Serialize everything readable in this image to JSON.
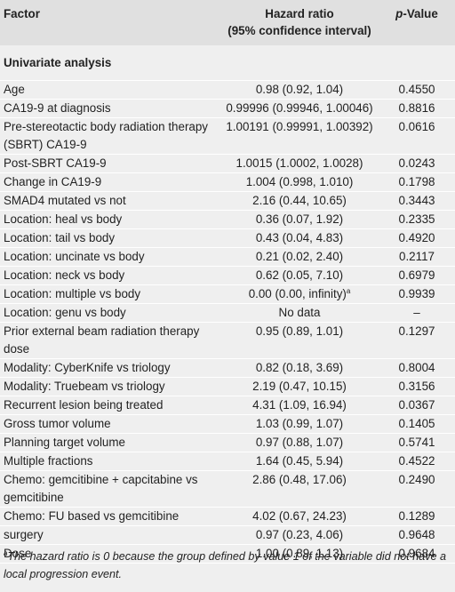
{
  "table": {
    "header": {
      "factor": "Factor",
      "hazard_ratio": [
        "Hazard ratio",
        "(95% confidence interval)"
      ],
      "p_value": {
        "italic": "p",
        "rest": "-Value"
      }
    },
    "section": "Univariate analysis",
    "rows": [
      {
        "factor": "Age",
        "hazard_ratio": "0.98 (0.92, 1.04)",
        "p_value": "0.4550"
      },
      {
        "factor": "CA19-9 at diagnosis",
        "hazard_ratio": "0.99996 (0.99946, 1.00046)",
        "p_value": "0.8816"
      },
      {
        "factor": "Pre-stereotactic body radiation therapy (SBRT) CA19-9",
        "hazard_ratio": "1.00191 (0.99991, 1.00392)",
        "p_value": "0.0616"
      },
      {
        "factor": "Post-SBRT CA19-9",
        "hazard_ratio": "1.0015 (1.0002, 1.0028)",
        "p_value": "0.0243"
      },
      {
        "factor": "Change in CA19-9",
        "hazard_ratio": "1.004 (0.998, 1.010)",
        "p_value": "0.1798"
      },
      {
        "factor": "SMAD4 mutated vs not",
        "hazard_ratio": "2.16 (0.44, 10.65)",
        "p_value": "0.3443"
      },
      {
        "factor": "Location: heal vs body",
        "hazard_ratio": "0.36 (0.07, 1.92)",
        "p_value": "0.2335"
      },
      {
        "factor": "Location: tail vs body",
        "hazard_ratio": "0.43 (0.04, 4.83)",
        "p_value": "0.4920"
      },
      {
        "factor": "Location: uncinate vs body",
        "hazard_ratio": "0.21 (0.02, 2.40)",
        "p_value": "0.2117"
      },
      {
        "factor": "Location: neck vs body",
        "hazard_ratio": "0.62 (0.05, 7.10)",
        "p_value": "0.6979"
      },
      {
        "factor": "Location: multiple vs body",
        "hazard_ratio": "0.00 (0.00, infinity)",
        "note": "a",
        "p_value": "0.9939"
      },
      {
        "factor": "Location: genu vs body",
        "hazard_ratio": "No data",
        "p_value": "–"
      },
      {
        "factor": "Prior external beam radiation therapy dose",
        "hazard_ratio": "0.95 (0.89, 1.01)",
        "p_value": "0.1297"
      },
      {
        "factor": "Modality: CyberKnife vs triology",
        "hazard_ratio": "0.82 (0.18, 3.69)",
        "p_value": "0.8004"
      },
      {
        "factor": "Modality: Truebeam vs triology",
        "hazard_ratio": "2.19 (0.47, 10.15)",
        "p_value": "0.3156"
      },
      {
        "factor": "Recurrent lesion being treated",
        "hazard_ratio": "4.31 (1.09, 16.94)",
        "p_value": "0.0367"
      },
      {
        "factor": "Gross tumor volume",
        "hazard_ratio": "1.03 (0.99, 1.07)",
        "p_value": "0.1405"
      },
      {
        "factor": "Planning target volume",
        "hazard_ratio": "0.97 (0.88, 1.07)",
        "p_value": "0.5741"
      },
      {
        "factor": "Multiple fractions",
        "hazard_ratio": "1.64 (0.45, 5.94)",
        "p_value": "0.4522"
      },
      {
        "factor": "Chemo: gemcitibine + capcitabine vs gemcitibine",
        "hazard_ratio": "2.86 (0.48, 17.06)",
        "p_value": "0.2490"
      },
      {
        "factor": "Chemo: FU based vs gemcitibine",
        "hazard_ratio": "4.02 (0.67, 24.23)",
        "p_value": "0.1289"
      },
      {
        "factor": "surgery",
        "hazard_ratio": "0.97 (0.23, 4.06)",
        "p_value": "0.9648"
      },
      {
        "factor": "Dose",
        "hazard_ratio": "1.00 (0.89, 1.13)",
        "p_value": "0.9684"
      }
    ]
  },
  "footnote": {
    "marker": "a",
    "text": "The hazard ratio is 0 because the group defined by value 1 of the variable did not have a local progression event."
  }
}
